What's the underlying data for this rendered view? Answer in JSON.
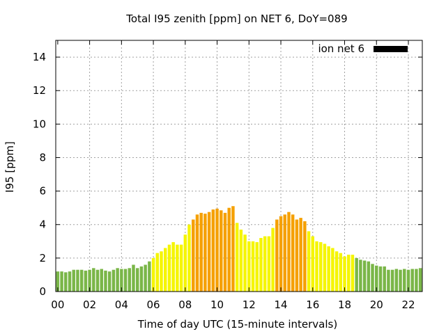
{
  "chart_data": {
    "type": "bar",
    "title": "Total I95 zenith [ppm] on NET 6, DoY=089",
    "xlabel": "Time of day UTC (15-minute intervals)",
    "ylabel": "I95 [ppm]",
    "xlim": [
      0,
      22.75
    ],
    "ylim": [
      0,
      15
    ],
    "xticks": [
      "00",
      "02",
      "04",
      "06",
      "08",
      "10",
      "12",
      "14",
      "16",
      "18",
      "20",
      "22"
    ],
    "yticks": [
      "0",
      "2",
      "4",
      "6",
      "8",
      "10",
      "12",
      "14"
    ],
    "grid": true,
    "legend": {
      "label": "ion net 6",
      "color": "#000000",
      "placement": "top-right"
    },
    "colors": {
      "green": "#7ab648",
      "yellow": "#f5f500",
      "orange": "#f5a000"
    },
    "bars": [
      {
        "x": 0.0,
        "y": 1.2,
        "color": "green"
      },
      {
        "x": 0.25,
        "y": 1.2,
        "color": "green"
      },
      {
        "x": 0.5,
        "y": 1.15,
        "color": "green"
      },
      {
        "x": 0.75,
        "y": 1.2,
        "color": "green"
      },
      {
        "x": 1.0,
        "y": 1.3,
        "color": "green"
      },
      {
        "x": 1.25,
        "y": 1.3,
        "color": "green"
      },
      {
        "x": 1.5,
        "y": 1.3,
        "color": "green"
      },
      {
        "x": 1.75,
        "y": 1.25,
        "color": "green"
      },
      {
        "x": 2.0,
        "y": 1.3,
        "color": "green"
      },
      {
        "x": 2.25,
        "y": 1.4,
        "color": "green"
      },
      {
        "x": 2.5,
        "y": 1.3,
        "color": "green"
      },
      {
        "x": 2.75,
        "y": 1.35,
        "color": "green"
      },
      {
        "x": 3.0,
        "y": 1.25,
        "color": "green"
      },
      {
        "x": 3.25,
        "y": 1.2,
        "color": "green"
      },
      {
        "x": 3.5,
        "y": 1.3,
        "color": "green"
      },
      {
        "x": 3.75,
        "y": 1.4,
        "color": "green"
      },
      {
        "x": 4.0,
        "y": 1.35,
        "color": "green"
      },
      {
        "x": 4.25,
        "y": 1.35,
        "color": "green"
      },
      {
        "x": 4.5,
        "y": 1.4,
        "color": "green"
      },
      {
        "x": 4.75,
        "y": 1.6,
        "color": "green"
      },
      {
        "x": 5.0,
        "y": 1.4,
        "color": "green"
      },
      {
        "x": 5.25,
        "y": 1.5,
        "color": "green"
      },
      {
        "x": 5.5,
        "y": 1.6,
        "color": "green"
      },
      {
        "x": 5.75,
        "y": 1.8,
        "color": "green"
      },
      {
        "x": 6.0,
        "y": 2.0,
        "color": "yellow"
      },
      {
        "x": 6.25,
        "y": 2.3,
        "color": "yellow"
      },
      {
        "x": 6.5,
        "y": 2.4,
        "color": "yellow"
      },
      {
        "x": 6.75,
        "y": 2.6,
        "color": "yellow"
      },
      {
        "x": 7.0,
        "y": 2.8,
        "color": "yellow"
      },
      {
        "x": 7.25,
        "y": 2.95,
        "color": "yellow"
      },
      {
        "x": 7.5,
        "y": 2.8,
        "color": "yellow"
      },
      {
        "x": 7.75,
        "y": 2.8,
        "color": "yellow"
      },
      {
        "x": 8.0,
        "y": 3.4,
        "color": "yellow"
      },
      {
        "x": 8.25,
        "y": 4.0,
        "color": "yellow"
      },
      {
        "x": 8.5,
        "y": 4.3,
        "color": "orange"
      },
      {
        "x": 8.75,
        "y": 4.6,
        "color": "orange"
      },
      {
        "x": 9.0,
        "y": 4.7,
        "color": "orange"
      },
      {
        "x": 9.25,
        "y": 4.65,
        "color": "orange"
      },
      {
        "x": 9.5,
        "y": 4.75,
        "color": "orange"
      },
      {
        "x": 9.75,
        "y": 4.9,
        "color": "orange"
      },
      {
        "x": 10.0,
        "y": 4.95,
        "color": "orange"
      },
      {
        "x": 10.25,
        "y": 4.85,
        "color": "orange"
      },
      {
        "x": 10.5,
        "y": 4.7,
        "color": "orange"
      },
      {
        "x": 10.75,
        "y": 5.0,
        "color": "orange"
      },
      {
        "x": 11.0,
        "y": 5.1,
        "color": "orange"
      },
      {
        "x": 11.25,
        "y": 4.1,
        "color": "yellow"
      },
      {
        "x": 11.5,
        "y": 3.7,
        "color": "yellow"
      },
      {
        "x": 11.75,
        "y": 3.4,
        "color": "yellow"
      },
      {
        "x": 12.0,
        "y": 3.0,
        "color": "yellow"
      },
      {
        "x": 12.25,
        "y": 3.0,
        "color": "yellow"
      },
      {
        "x": 12.5,
        "y": 2.95,
        "color": "yellow"
      },
      {
        "x": 12.75,
        "y": 3.2,
        "color": "yellow"
      },
      {
        "x": 13.0,
        "y": 3.3,
        "color": "yellow"
      },
      {
        "x": 13.25,
        "y": 3.3,
        "color": "yellow"
      },
      {
        "x": 13.5,
        "y": 3.8,
        "color": "yellow"
      },
      {
        "x": 13.75,
        "y": 4.3,
        "color": "orange"
      },
      {
        "x": 14.0,
        "y": 4.5,
        "color": "orange"
      },
      {
        "x": 14.25,
        "y": 4.6,
        "color": "orange"
      },
      {
        "x": 14.5,
        "y": 4.75,
        "color": "orange"
      },
      {
        "x": 14.75,
        "y": 4.6,
        "color": "orange"
      },
      {
        "x": 15.0,
        "y": 4.3,
        "color": "orange"
      },
      {
        "x": 15.25,
        "y": 4.4,
        "color": "orange"
      },
      {
        "x": 15.5,
        "y": 4.2,
        "color": "orange"
      },
      {
        "x": 15.75,
        "y": 3.6,
        "color": "yellow"
      },
      {
        "x": 16.0,
        "y": 3.3,
        "color": "yellow"
      },
      {
        "x": 16.25,
        "y": 3.0,
        "color": "yellow"
      },
      {
        "x": 16.5,
        "y": 2.95,
        "color": "yellow"
      },
      {
        "x": 16.75,
        "y": 2.85,
        "color": "yellow"
      },
      {
        "x": 17.0,
        "y": 2.7,
        "color": "yellow"
      },
      {
        "x": 17.25,
        "y": 2.6,
        "color": "yellow"
      },
      {
        "x": 17.5,
        "y": 2.4,
        "color": "yellow"
      },
      {
        "x": 17.75,
        "y": 2.3,
        "color": "yellow"
      },
      {
        "x": 18.0,
        "y": 2.1,
        "color": "yellow"
      },
      {
        "x": 18.25,
        "y": 2.2,
        "color": "yellow"
      },
      {
        "x": 18.5,
        "y": 2.2,
        "color": "yellow"
      },
      {
        "x": 18.75,
        "y": 2.0,
        "color": "green"
      },
      {
        "x": 19.0,
        "y": 1.9,
        "color": "green"
      },
      {
        "x": 19.25,
        "y": 1.85,
        "color": "green"
      },
      {
        "x": 19.5,
        "y": 1.8,
        "color": "green"
      },
      {
        "x": 19.75,
        "y": 1.65,
        "color": "green"
      },
      {
        "x": 20.0,
        "y": 1.55,
        "color": "green"
      },
      {
        "x": 20.25,
        "y": 1.5,
        "color": "green"
      },
      {
        "x": 20.5,
        "y": 1.5,
        "color": "green"
      },
      {
        "x": 20.75,
        "y": 1.3,
        "color": "green"
      },
      {
        "x": 21.0,
        "y": 1.3,
        "color": "green"
      },
      {
        "x": 21.25,
        "y": 1.35,
        "color": "green"
      },
      {
        "x": 21.5,
        "y": 1.3,
        "color": "green"
      },
      {
        "x": 21.75,
        "y": 1.35,
        "color": "green"
      },
      {
        "x": 22.0,
        "y": 1.3,
        "color": "green"
      },
      {
        "x": 22.25,
        "y": 1.35,
        "color": "green"
      },
      {
        "x": 22.5,
        "y": 1.35,
        "color": "green"
      },
      {
        "x": 22.75,
        "y": 1.4,
        "color": "green"
      }
    ]
  }
}
